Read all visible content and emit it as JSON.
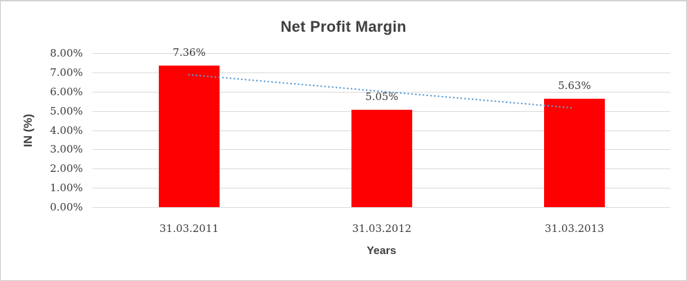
{
  "title": "Net Profit Margin",
  "chart_data": {
    "type": "bar",
    "title": "Net Profit Margin",
    "categories": [
      "31.03.2011",
      "31.03.2012",
      "31.03.2013"
    ],
    "series": [
      {
        "name": "Net Profit Margin",
        "values": [
          7.36,
          5.05,
          5.63
        ]
      }
    ],
    "data_labels": [
      "7.36%",
      "5.05%",
      "5.63%"
    ],
    "xlabel": "Years",
    "ylabel": "IN (%)",
    "ylim": [
      0,
      8
    ],
    "ytick_labels": [
      "0.00%",
      "1.00%",
      "2.00%",
      "3.00%",
      "4.00%",
      "5.00%",
      "6.00%",
      "7.00%",
      "8.00%"
    ],
    "grid": true,
    "legend": "none",
    "trendline": {
      "type": "linear",
      "style": "dotted",
      "color": "#5b9bd5",
      "start_value_pct": 6.88,
      "end_value_pct": 5.15
    }
  },
  "colors": {
    "bar": "#ff0000",
    "trendline": "#5b9bd5",
    "gridline": "#d9d9d9",
    "title_text": "#404040",
    "axis_text": "#3a3a3a",
    "border": "#c9c9c9",
    "background": "#ffffff"
  }
}
